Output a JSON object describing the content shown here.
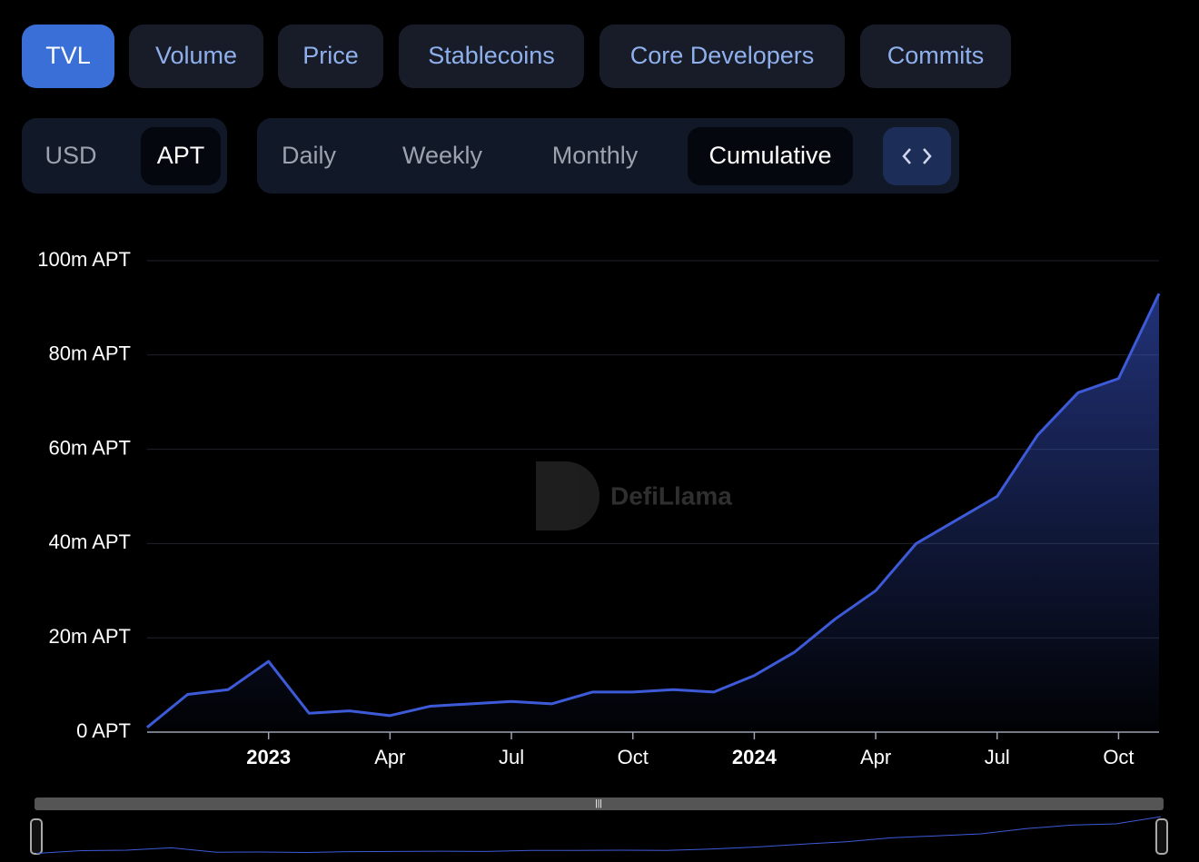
{
  "tabs": [
    "TVL",
    "Volume",
    "Price",
    "Stablecoins",
    "Core Developers",
    "Commits"
  ],
  "currency": [
    "USD",
    "APT"
  ],
  "periods": [
    "Daily",
    "Weekly",
    "Monthly",
    "Cumulative"
  ],
  "watermark": "DefiLlama",
  "chart_data": {
    "type": "area",
    "color": "#3d5bd9",
    "x": [
      "2022-10",
      "2022-11",
      "2022-12",
      "2023-01",
      "2023-02",
      "2023-03",
      "2023-04",
      "2023-05",
      "2023-06",
      "2023-07",
      "2023-08",
      "2023-09",
      "2023-10",
      "2023-11",
      "2023-12",
      "2024-01",
      "2024-02",
      "2024-03",
      "2024-04",
      "2024-05",
      "2024-06",
      "2024-07",
      "2024-08",
      "2024-09",
      "2024-10",
      "2024-11"
    ],
    "values": [
      1,
      8,
      9,
      15,
      4,
      4.5,
      3.5,
      5.5,
      6,
      6.5,
      6,
      8.5,
      8.5,
      9,
      8.5,
      12,
      17,
      24,
      30,
      40,
      45,
      50,
      63,
      72,
      75,
      93
    ],
    "xlim": [
      "2022-10",
      "2024-11"
    ],
    "xticks": [
      {
        "value": "2023-01",
        "label": "2023"
      },
      {
        "value": "2023-04",
        "label": "Apr"
      },
      {
        "value": "2023-07",
        "label": "Jul"
      },
      {
        "value": "2023-10",
        "label": "Oct"
      },
      {
        "value": "2024-01",
        "label": "2024"
      },
      {
        "value": "2024-04",
        "label": "Apr"
      },
      {
        "value": "2024-07",
        "label": "Jul"
      },
      {
        "value": "2024-10",
        "label": "Oct"
      }
    ],
    "ylim": [
      0,
      100
    ],
    "yticks": [
      {
        "value": 0,
        "label": "0 APT"
      },
      {
        "value": 20,
        "label": "20m APT"
      },
      {
        "value": 40,
        "label": "40m APT"
      },
      {
        "value": 60,
        "label": "60m APT"
      },
      {
        "value": 80,
        "label": "80m APT"
      },
      {
        "value": 100,
        "label": "100m APT"
      }
    ],
    "grid": true
  }
}
